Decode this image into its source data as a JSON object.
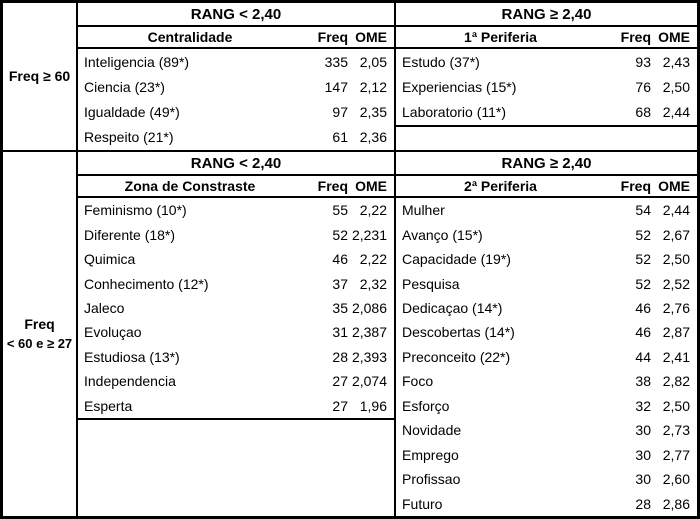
{
  "sections": [
    {
      "left_label": "Freq ≥ 60",
      "left": {
        "rang_header": "RANG < 2,40",
        "title": "Centralidade",
        "freq_header": "Freq",
        "ome_header": "OME",
        "rows": [
          {
            "term": "Inteligencia (89*)",
            "freq": "335",
            "ome": "2,05"
          },
          {
            "term": "Ciencia  (23*)",
            "freq": "147",
            "ome": "2,12"
          },
          {
            "term": "Igualdade (49*)",
            "freq": "97",
            "ome": "2,35"
          },
          {
            "term": "Respeito (21*)",
            "freq": "61",
            "ome": "2,36"
          }
        ]
      },
      "right": {
        "rang_header": "RANG ≥ 2,40",
        "title": "1ª Periferia",
        "freq_header": "Freq",
        "ome_header": "OME",
        "rows": [
          {
            "term": "Estudo (37*)",
            "freq": "93",
            "ome": "2,43"
          },
          {
            "term": "Experiencias (15*)",
            "freq": "76",
            "ome": "2,50"
          },
          {
            "term": "Laboratorio (11*)",
            "freq": "68",
            "ome": "2,44"
          }
        ]
      }
    },
    {
      "left_label_line1": "Freq",
      "left_label_line2": "< 60 e ≥ 27",
      "left": {
        "rang_header": "RANG < 2,40",
        "title": "Zona de Constraste",
        "freq_header": "Freq",
        "ome_header": "OME",
        "rows": [
          {
            "term": "Feminismo (10*)",
            "freq": "55",
            "ome": "2,22"
          },
          {
            "term": "Diferente  (18*)",
            "freq": "52",
            "ome": "2,231"
          },
          {
            "term": "Quimica",
            "freq": "46",
            "ome": "2,22"
          },
          {
            "term": "Conhecimento (12*)",
            "freq": "37",
            "ome": "2,32"
          },
          {
            "term": "Jaleco",
            "freq": "35",
            "ome": "2,086"
          },
          {
            "term": "Evoluçao",
            "freq": "31",
            "ome": "2,387"
          },
          {
            "term": "Estudiosa (13*)",
            "freq": "28",
            "ome": "2,393"
          },
          {
            "term": "Independencia",
            "freq": "27",
            "ome": "2,074"
          },
          {
            "term": "Esperta",
            "freq": "27",
            "ome": "1,96"
          }
        ]
      },
      "right": {
        "rang_header": "RANG ≥ 2,40",
        "title": "2ª Periferia",
        "freq_header": "Freq",
        "ome_header": "OME",
        "rows": [
          {
            "term": "Mulher",
            "freq": "54",
            "ome": "2,44"
          },
          {
            "term": "Avanço (15*)",
            "freq": "52",
            "ome": "2,67"
          },
          {
            "term": "Capacidade (19*)",
            "freq": "52",
            "ome": "2,50"
          },
          {
            "term": "Pesquisa",
            "freq": "52",
            "ome": "2,52"
          },
          {
            "term": "Dedicaçao (14*)",
            "freq": "46",
            "ome": "2,76"
          },
          {
            "term": "Descobertas (14*)",
            "freq": "46",
            "ome": "2,87"
          },
          {
            "term": "Preconceito (22*)",
            "freq": "44",
            "ome": "2,41"
          },
          {
            "term": "Foco",
            "freq": "38",
            "ome": "2,82"
          },
          {
            "term": "Esforço",
            "freq": "32",
            "ome": "2,50"
          },
          {
            "term": "Novidade",
            "freq": "30",
            "ome": "2,73"
          },
          {
            "term": "Emprego",
            "freq": "30",
            "ome": "2,77"
          },
          {
            "term": "Profissao",
            "freq": "30",
            "ome": "2,60"
          },
          {
            "term": "Futuro",
            "freq": "28",
            "ome": "2,86"
          }
        ]
      }
    }
  ]
}
